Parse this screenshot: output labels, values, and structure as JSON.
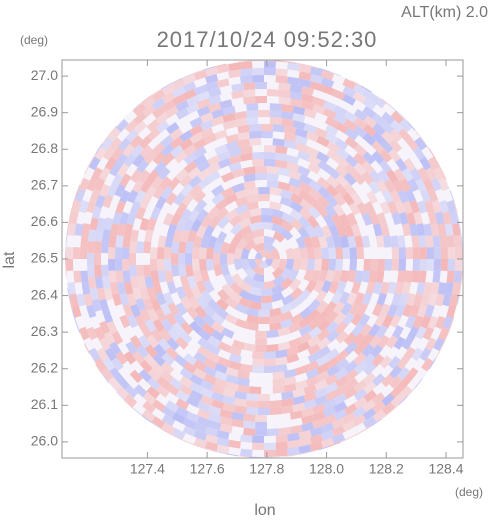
{
  "chart_data": {
    "type": "radar-ppi",
    "title": "2017/10/24 09:52:30",
    "subtitle": "ALT(km) 2.0",
    "x_label": "lon",
    "y_label": "lat",
    "x_unit": "(deg)",
    "y_unit": "(deg)",
    "xlim": [
      127.114,
      128.457
    ],
    "xticks": [
      127.4,
      127.6,
      127.8,
      {
        "value": 128,
        "label": "128.0"
      },
      128.2,
      128.4
    ],
    "ylim": [
      25.956,
      27.044
    ],
    "yticks": [
      {
        "value": 26,
        "label": "26.0"
      },
      26.1,
      26.2,
      26.3,
      26.4,
      26.5,
      26.6,
      26.7,
      26.8,
      26.9,
      {
        "value": 27,
        "label": "27.0"
      }
    ]
  }
}
